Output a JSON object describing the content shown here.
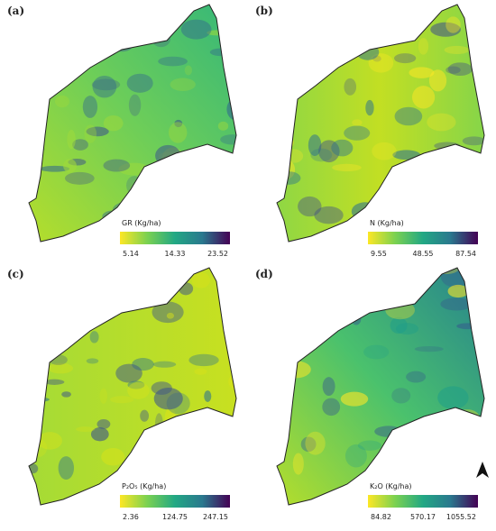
{
  "panels": [
    {
      "label": "(a)",
      "legend_title": "GR (Kg/ha)",
      "legend_ticks": [
        5.14,
        14.33,
        23.52
      ]
    },
    {
      "label": "(b)",
      "legend_title": "N (Kg/ha)",
      "legend_ticks": [
        9.55,
        48.55,
        87.54
      ]
    },
    {
      "label": "(c)",
      "legend_title": "P₂O₅ (Kg/ha)",
      "legend_ticks": [
        2.36,
        124.75,
        247.15
      ]
    },
    {
      "label": "(d)",
      "legend_title": "K₂O (Kg/ha)",
      "legend_ticks": [
        84.82,
        570.17,
        1055.52
      ]
    }
  ]
}
